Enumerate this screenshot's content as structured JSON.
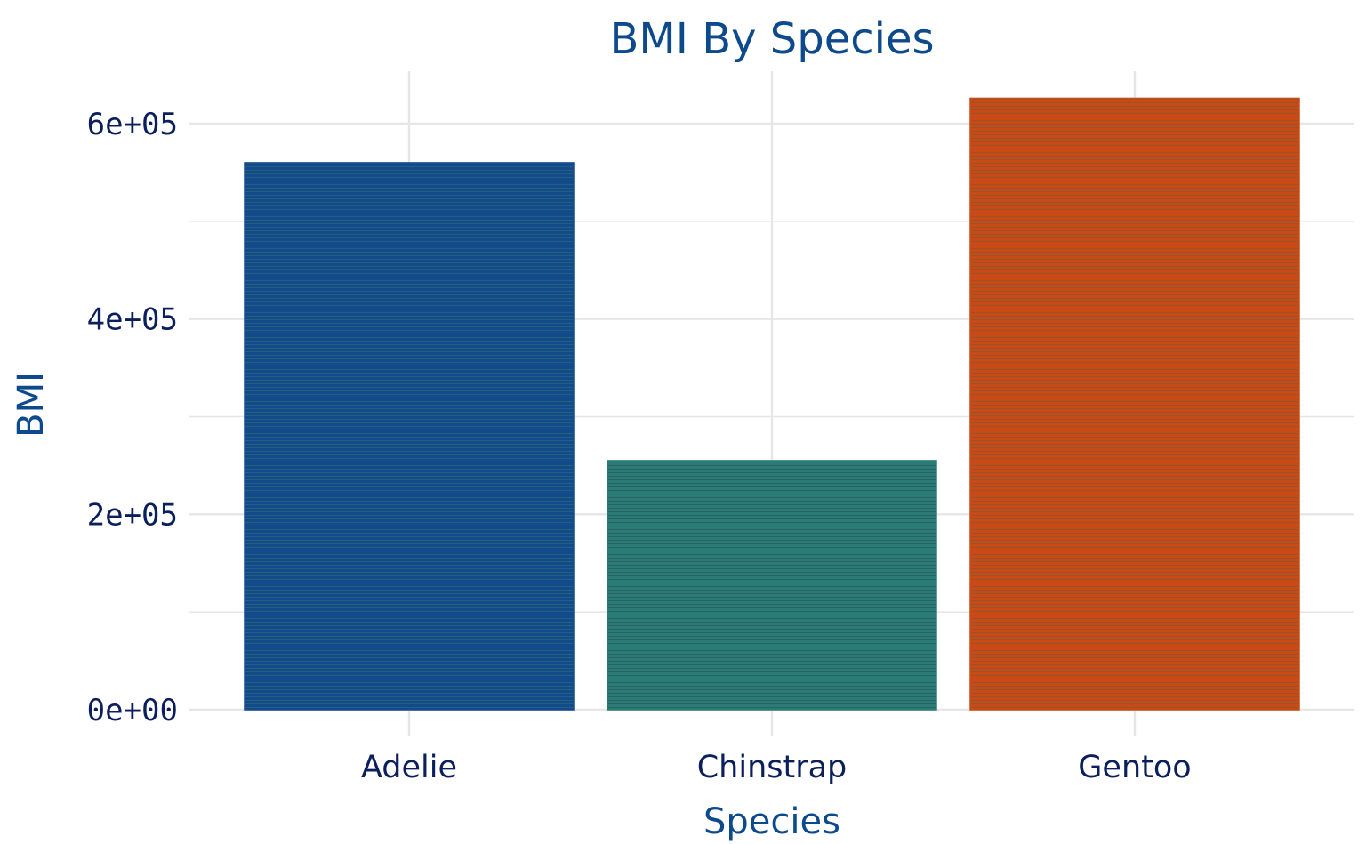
{
  "chart_data": {
    "type": "bar",
    "title": "BMI By Species",
    "xlabel": "Species",
    "ylabel": "BMI",
    "categories": [
      "Adelie",
      "Chinstrap",
      "Gentoo"
    ],
    "values": [
      560000,
      255000,
      626000
    ],
    "ylim": [
      0,
      650000
    ],
    "yticks": [
      0,
      200000,
      400000,
      600000
    ],
    "ytick_labels": [
      "0e+00",
      "2e+05",
      "4e+05",
      "6e+05"
    ],
    "grid": true,
    "legend": "none"
  },
  "colors": {
    "title": "#0d4a8c",
    "axis_title": "#0d4a8c",
    "tick_text": "#0b1f5c",
    "grid": "#e6e6e6",
    "bars": [
      "#124a8a",
      "#2b7b77",
      "#c94a14"
    ],
    "bar_stripes": [
      "#2a6a7a",
      "#24545a",
      "#7a5a3a"
    ]
  }
}
